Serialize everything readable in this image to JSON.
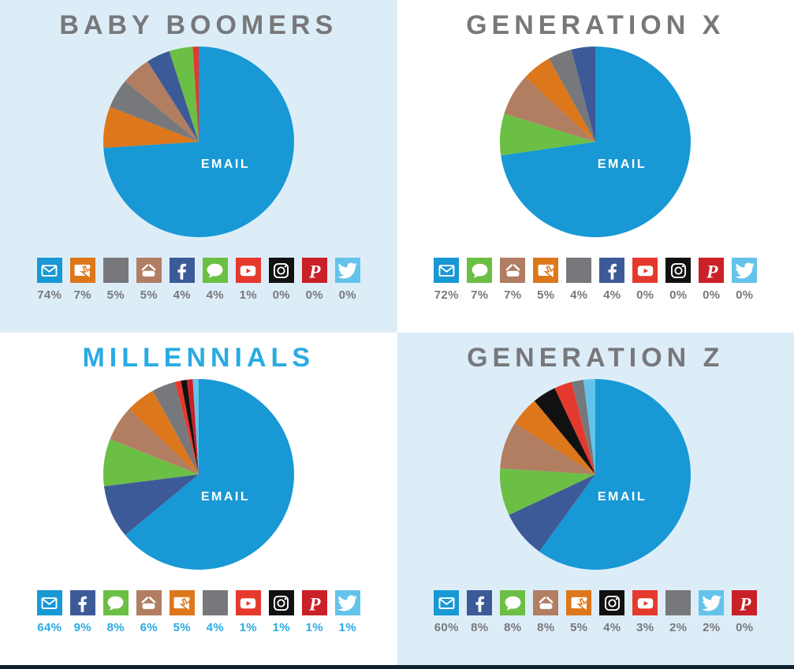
{
  "page": {
    "panel_bg_light": "#ddedf8",
    "panel_bg_white": "#ffffff",
    "footer_bar_color": "#10212e",
    "default_title_color": "#77787b",
    "millennials_accent_color": "#29abe2",
    "pie_center_label": "EMAIL"
  },
  "chart_data": [
    {
      "type": "pie",
      "title": "BABY BOOMERS",
      "title_color": "#77787b",
      "pct_color": "#77787b",
      "background": "#ddedf8",
      "center_label": "EMAIL",
      "legend_position": "bottom",
      "slices": [
        {
          "channel": "email",
          "value": 74,
          "label": "74%",
          "color": "#1898d5"
        },
        {
          "channel": "online",
          "value": 7,
          "label": "7%",
          "color": "#dd771c"
        },
        {
          "channel": "other",
          "value": 5,
          "label": "5%",
          "color": "#77787b"
        },
        {
          "channel": "in-store",
          "value": 5,
          "label": "5%",
          "color": "#b17e62"
        },
        {
          "channel": "facebook",
          "value": 4,
          "label": "4%",
          "color": "#3d5a98"
        },
        {
          "channel": "text-message",
          "value": 4,
          "label": "4%",
          "color": "#6cbf45"
        },
        {
          "channel": "youtube",
          "value": 1,
          "label": "1%",
          "color": "#e6392d"
        },
        {
          "channel": "instagram",
          "value": 0,
          "label": "0%",
          "color": "#111111"
        },
        {
          "channel": "pinterest",
          "value": 0,
          "label": "0%",
          "color": "#ca2028"
        },
        {
          "channel": "twitter",
          "value": 0,
          "label": "0%",
          "color": "#64c3ea"
        }
      ]
    },
    {
      "type": "pie",
      "title": "GENERATION X",
      "title_color": "#77787b",
      "pct_color": "#77787b",
      "background": "#ffffff",
      "center_label": "EMAIL",
      "legend_position": "bottom",
      "slices": [
        {
          "channel": "email",
          "value": 72,
          "label": "72%",
          "color": "#1898d5"
        },
        {
          "channel": "text-message",
          "value": 7,
          "label": "7%",
          "color": "#6cbf45"
        },
        {
          "channel": "in-store",
          "value": 7,
          "label": "7%",
          "color": "#b17e62"
        },
        {
          "channel": "online",
          "value": 5,
          "label": "5%",
          "color": "#dd771c"
        },
        {
          "channel": "other",
          "value": 4,
          "label": "4%",
          "color": "#77787b"
        },
        {
          "channel": "facebook",
          "value": 4,
          "label": "4%",
          "color": "#3d5a98"
        },
        {
          "channel": "youtube",
          "value": 0,
          "label": "0%",
          "color": "#e6392d"
        },
        {
          "channel": "instagram",
          "value": 0,
          "label": "0%",
          "color": "#111111"
        },
        {
          "channel": "pinterest",
          "value": 0,
          "label": "0%",
          "color": "#ca2028"
        },
        {
          "channel": "twitter",
          "value": 0,
          "label": "0%",
          "color": "#64c3ea"
        }
      ]
    },
    {
      "type": "pie",
      "title": "MILLENNIALS",
      "title_color": "#29abe2",
      "pct_color": "#29abe2",
      "background": "#ffffff",
      "center_label": "EMAIL",
      "legend_position": "bottom",
      "slices": [
        {
          "channel": "email",
          "value": 64,
          "label": "64%",
          "color": "#1898d5"
        },
        {
          "channel": "facebook",
          "value": 9,
          "label": "9%",
          "color": "#3d5a98"
        },
        {
          "channel": "text-message",
          "value": 8,
          "label": "8%",
          "color": "#6cbf45"
        },
        {
          "channel": "in-store",
          "value": 6,
          "label": "6%",
          "color": "#b17e62"
        },
        {
          "channel": "online",
          "value": 5,
          "label": "5%",
          "color": "#dd771c"
        },
        {
          "channel": "other",
          "value": 4,
          "label": "4%",
          "color": "#77787b"
        },
        {
          "channel": "youtube",
          "value": 1,
          "label": "1%",
          "color": "#e6392d"
        },
        {
          "channel": "instagram",
          "value": 1,
          "label": "1%",
          "color": "#111111"
        },
        {
          "channel": "pinterest",
          "value": 1,
          "label": "1%",
          "color": "#ca2028"
        },
        {
          "channel": "twitter",
          "value": 1,
          "label": "1%",
          "color": "#64c3ea"
        }
      ]
    },
    {
      "type": "pie",
      "title": "GENERATION Z",
      "title_color": "#77787b",
      "pct_color": "#77787b",
      "background": "#ddedf8",
      "center_label": "EMAIL",
      "legend_position": "bottom",
      "slices": [
        {
          "channel": "email",
          "value": 60,
          "label": "60%",
          "color": "#1898d5"
        },
        {
          "channel": "facebook",
          "value": 8,
          "label": "8%",
          "color": "#3d5a98"
        },
        {
          "channel": "text-message",
          "value": 8,
          "label": "8%",
          "color": "#6cbf45"
        },
        {
          "channel": "in-store",
          "value": 8,
          "label": "8%",
          "color": "#b17e62"
        },
        {
          "channel": "online",
          "value": 5,
          "label": "5%",
          "color": "#dd771c"
        },
        {
          "channel": "instagram",
          "value": 4,
          "label": "4%",
          "color": "#111111"
        },
        {
          "channel": "youtube",
          "value": 3,
          "label": "3%",
          "color": "#e6392d"
        },
        {
          "channel": "other",
          "value": 2,
          "label": "2%",
          "color": "#77787b"
        },
        {
          "channel": "twitter",
          "value": 2,
          "label": "2%",
          "color": "#64c3ea"
        },
        {
          "channel": "pinterest",
          "value": 0,
          "label": "0%",
          "color": "#ca2028"
        }
      ]
    }
  ]
}
